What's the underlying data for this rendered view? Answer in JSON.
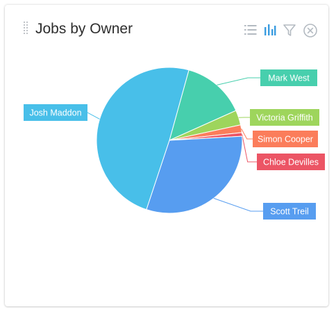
{
  "widget": {
    "title": "Jobs by Owner",
    "icons": [
      "list-icon",
      "bar-chart-icon",
      "filter-icon",
      "close-icon"
    ]
  },
  "chart_data": {
    "type": "pie",
    "title": "Jobs by Owner",
    "legend": "none",
    "slices": [
      {
        "label": "Mark West",
        "value": 14,
        "color": "#47cfad"
      },
      {
        "label": "Victoria Griffith",
        "value": 3.3,
        "color": "#9ed55c"
      },
      {
        "label": "Simon Cooper",
        "value": 1.7,
        "color": "#fb7d5b"
      },
      {
        "label": "Chloe Devilles",
        "value": 0.8,
        "color": "#ec5565"
      },
      {
        "label": "Scott Treil",
        "value": 31,
        "color": "#579df0"
      },
      {
        "label": "Josh Maddon",
        "value": 49.2,
        "color": "#48bfe9"
      }
    ]
  }
}
